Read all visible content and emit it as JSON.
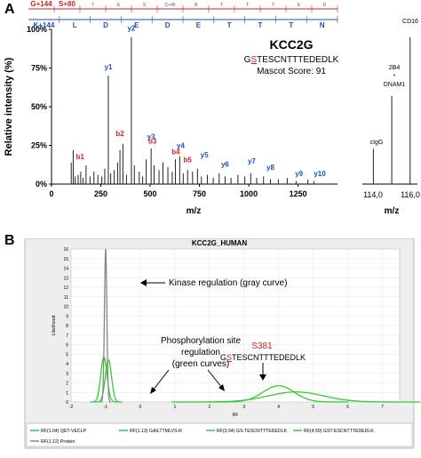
{
  "figure": {
    "panel_a_label": "A",
    "panel_b_label": "B"
  },
  "panel_a": {
    "peptide_id": "KCC2G",
    "sequence_prefix": "G",
    "sequence_site": "S",
    "sequence_suffix": "TESCNTTTEDEDLK",
    "mascot_score": "Mascot Score: 91",
    "ylabel": "Relative intensity (%)",
    "xlabel": "m/z",
    "inset_xlabel": "m/z",
    "yticks": [
      "0%",
      "25%",
      "50%",
      "75%",
      "100%"
    ],
    "xticks": [
      "0",
      "250",
      "500",
      "750",
      "1000",
      "1250"
    ],
    "inset_xticks": [
      "114,0",
      "116,0"
    ],
    "inset_labels": {
      "cd16": "CD16",
      "lbl2b4": "2B4",
      "star": "*",
      "dnam1": "DNAM1",
      "cigg": "cIgG"
    },
    "top_sequence": {
      "row1": [
        "G+144",
        "S+80",
        "T",
        "E",
        "S",
        "C+46",
        "N",
        "T",
        "T",
        "T",
        "E",
        "D"
      ],
      "row2": [
        "K+144",
        "L",
        "D",
        "E",
        "D",
        "E",
        "T",
        "T",
        "T",
        "N"
      ]
    }
  },
  "chart_data": [
    {
      "type": "bar",
      "title": "",
      "xlabel": "m/z",
      "ylabel": "Relative intensity (%)",
      "xlim": [
        0,
        1450
      ],
      "ylim": [
        0,
        100
      ],
      "peaks": [
        {
          "mz": 100,
          "rel": 14
        },
        {
          "mz": 110,
          "rel": 22
        },
        {
          "mz": 120,
          "rel": 5
        },
        {
          "mz": 135,
          "rel": 6
        },
        {
          "mz": 148,
          "rel": 8
        },
        {
          "mz": 160,
          "rel": 4
        },
        {
          "mz": 175,
          "rel": 12
        },
        {
          "mz": 195,
          "rel": 5
        },
        {
          "mz": 215,
          "rel": 8
        },
        {
          "mz": 235,
          "rel": 6
        },
        {
          "mz": 255,
          "rel": 5
        },
        {
          "mz": 270,
          "rel": 10
        },
        {
          "mz": 288,
          "rel": 70
        },
        {
          "mz": 300,
          "rel": 7
        },
        {
          "mz": 318,
          "rel": 9
        },
        {
          "mz": 335,
          "rel": 14
        },
        {
          "mz": 347,
          "rel": 22
        },
        {
          "mz": 362,
          "rel": 26
        },
        {
          "mz": 380,
          "rel": 6
        },
        {
          "mz": 405,
          "rel": 95
        },
        {
          "mz": 420,
          "rel": 12
        },
        {
          "mz": 445,
          "rel": 8
        },
        {
          "mz": 462,
          "rel": 5
        },
        {
          "mz": 480,
          "rel": 16
        },
        {
          "mz": 505,
          "rel": 23
        },
        {
          "mz": 520,
          "rel": 12
        },
        {
          "mz": 545,
          "rel": 9
        },
        {
          "mz": 565,
          "rel": 14
        },
        {
          "mz": 590,
          "rel": 11
        },
        {
          "mz": 612,
          "rel": 8
        },
        {
          "mz": 628,
          "rel": 16
        },
        {
          "mz": 650,
          "rel": 18
        },
        {
          "mz": 668,
          "rel": 7
        },
        {
          "mz": 690,
          "rel": 9
        },
        {
          "mz": 715,
          "rel": 8
        },
        {
          "mz": 740,
          "rel": 10
        },
        {
          "mz": 760,
          "rel": 5
        },
        {
          "mz": 790,
          "rel": 6
        },
        {
          "mz": 820,
          "rel": 4
        },
        {
          "mz": 850,
          "rel": 7
        },
        {
          "mz": 880,
          "rel": 5
        },
        {
          "mz": 910,
          "rel": 4
        },
        {
          "mz": 945,
          "rel": 6
        },
        {
          "mz": 980,
          "rel": 5
        },
        {
          "mz": 1010,
          "rel": 7
        },
        {
          "mz": 1040,
          "rel": 4
        },
        {
          "mz": 1075,
          "rel": 5
        },
        {
          "mz": 1110,
          "rel": 3
        },
        {
          "mz": 1150,
          "rel": 3
        },
        {
          "mz": 1195,
          "rel": 4
        },
        {
          "mz": 1240,
          "rel": 2
        },
        {
          "mz": 1300,
          "rel": 3
        },
        {
          "mz": 1330,
          "rel": 2
        }
      ],
      "ion_labels": [
        {
          "text": "b1",
          "mz": 145,
          "rel": 15,
          "color": "#d0231e"
        },
        {
          "text": "y1",
          "mz": 288,
          "rel": 73,
          "color": "#1f4fbf"
        },
        {
          "text": "y2",
          "mz": 405,
          "rel": 98,
          "color": "#1f4fbf"
        },
        {
          "text": "b2",
          "mz": 347,
          "rel": 30,
          "color": "#d0231e"
        },
        {
          "text": "b3",
          "mz": 512,
          "rel": 25,
          "color": "#d0231e"
        },
        {
          "text": "y3",
          "mz": 505,
          "rel": 28,
          "color": "#1f4fbf"
        },
        {
          "text": "b4",
          "mz": 630,
          "rel": 18,
          "color": "#d0231e"
        },
        {
          "text": "y4",
          "mz": 655,
          "rel": 22,
          "color": "#1f4fbf"
        },
        {
          "text": "b5",
          "mz": 690,
          "rel": 13,
          "color": "#d0231e"
        },
        {
          "text": "y5",
          "mz": 775,
          "rel": 16,
          "color": "#1f4fbf"
        },
        {
          "text": "y6",
          "mz": 880,
          "rel": 10,
          "color": "#1f4fbf"
        },
        {
          "text": "y7",
          "mz": 1015,
          "rel": 12,
          "color": "#1f4fbf"
        },
        {
          "text": "y8",
          "mz": 1110,
          "rel": 8,
          "color": "#1f4fbf"
        },
        {
          "text": "y9",
          "mz": 1255,
          "rel": 4,
          "color": "#1f4fbf"
        },
        {
          "text": "y10",
          "mz": 1360,
          "rel": 4,
          "color": "#1f4fbf"
        }
      ]
    },
    {
      "type": "bar",
      "title": "",
      "xlabel": "m/z",
      "xlim": [
        113.5,
        116.5
      ],
      "ylim": [
        0,
        100
      ],
      "peaks": [
        {
          "mz": 114.1,
          "rel": 24
        },
        {
          "mz": 115.1,
          "rel": 60
        },
        {
          "mz": 116.1,
          "rel": 100
        }
      ]
    },
    {
      "type": "line",
      "title": "KCC2G_HUMAN",
      "xlabel": "RF",
      "ylabel": "Likelihood",
      "xlim": [
        -2,
        7.5
      ],
      "ylim": [
        0,
        16
      ],
      "x_ticks": [
        "-2",
        "-1",
        "0",
        "1",
        "2",
        "3",
        "4",
        "5",
        "6",
        "7"
      ],
      "y_ticks": [
        "0",
        "1",
        "2",
        "3",
        "4",
        "5",
        "6",
        "7",
        "8",
        "9",
        "10",
        "11",
        "12",
        "13",
        "14",
        "15",
        "16"
      ],
      "series": [
        {
          "name": "RF(1.04) QET-VECLP",
          "color": "#33cc33",
          "mean": -1.05,
          "sd": 0.09,
          "peak": 4.7
        },
        {
          "name": "RF(1.13) GAILTTMLVS-R",
          "color": "#33cc33",
          "mean": -0.92,
          "sd": 0.09,
          "peak": 4.4
        },
        {
          "name": "RF(3.94) GS-TESCNTTTEDEDLK",
          "color": "#33cc33",
          "mean": 4.0,
          "sd": 0.45,
          "peak": 1.7
        },
        {
          "name": "RF(4.59) GST-ESCNTTTEDEDLK",
          "color": "#33cc33",
          "mean": 4.5,
          "sd": 0.8,
          "peak": 1.05
        },
        {
          "name": "RF(1.12) Protein",
          "color": "#888888",
          "mean": -1.0,
          "sd": 0.035,
          "peak": 16
        }
      ],
      "annotations": {
        "kinase": "Kinase regulation (gray curve)",
        "phospho_line1": "Phosphorylation site",
        "phospho_line2": "regulation",
        "phospho_line3": "(green curves)",
        "site": "S381",
        "site_seq_prefix": "G",
        "site_seq_site": "S",
        "site_seq_suffix": "TESCNTTTEDEDLK"
      }
    }
  ],
  "colors": {
    "ion_b": "#d0231e",
    "ion_y": "#1f4fbf",
    "green_curve": "#33cc33",
    "gray_curve": "#888888"
  }
}
